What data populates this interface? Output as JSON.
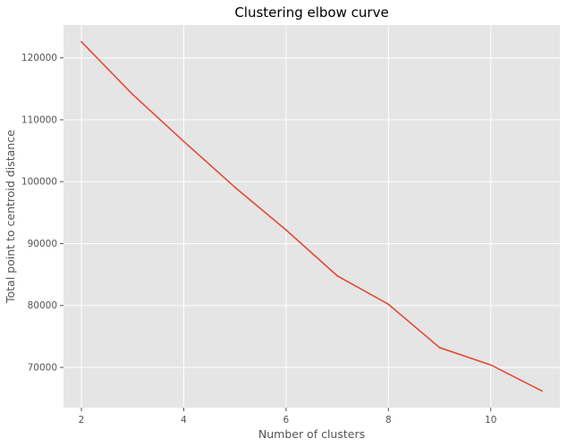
{
  "chart_data": {
    "type": "line",
    "title": "Clustering elbow curve",
    "xlabel": "Number of clusters",
    "ylabel": "Total point to centroid distance",
    "x": [
      2,
      3,
      4,
      5,
      6,
      7,
      8,
      9,
      10,
      11
    ],
    "series": [
      {
        "values": [
          122600,
          114100,
          106500,
          99100,
          92200,
          84800,
          80200,
          73200,
          70400,
          66200
        ]
      }
    ],
    "xlim": [
      1.65,
      11.35
    ],
    "ylim": [
      63500,
      125300
    ],
    "xticks": [
      2,
      4,
      6,
      8,
      10
    ],
    "xtick_labels": [
      "2",
      "4",
      "6",
      "8",
      "10"
    ],
    "yticks": [
      70000,
      80000,
      90000,
      100000,
      110000,
      120000
    ],
    "ytick_labels": [
      "70000",
      "80000",
      "90000",
      "100000",
      "110000",
      "120000"
    ],
    "grid": true,
    "colors": {
      "background": "#e5e5e5",
      "grid": "#ffffff",
      "line": "#e24a33",
      "text": "#555555",
      "title": "#000000"
    }
  }
}
